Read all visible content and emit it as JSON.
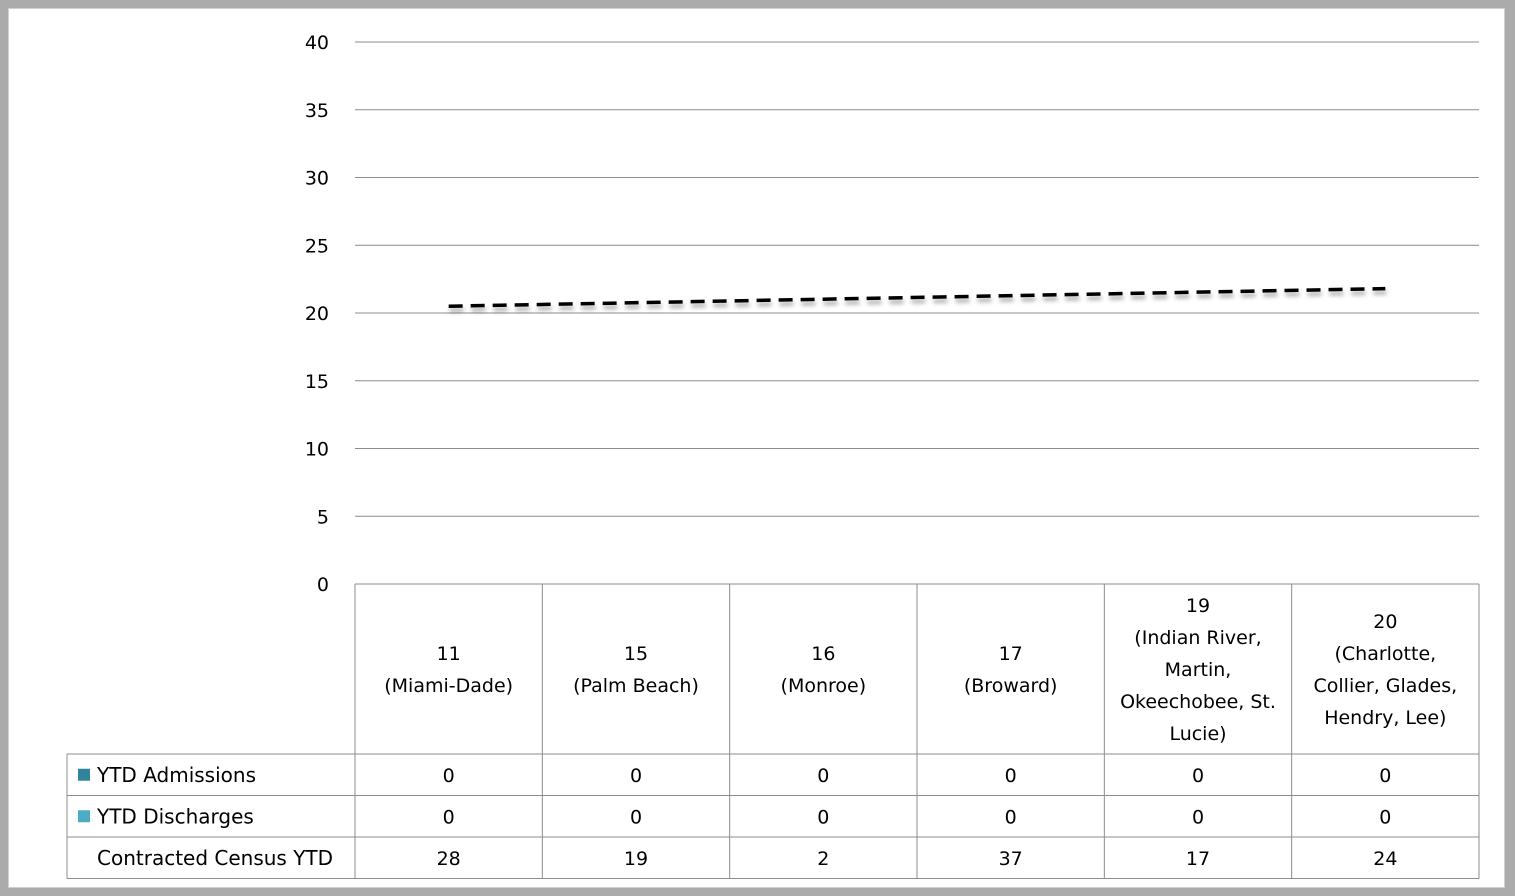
{
  "chart_data": {
    "type": "bar",
    "title": "",
    "xlabel": "",
    "ylabel": "",
    "ylim": [
      0,
      40
    ],
    "yticks": [
      0,
      5,
      10,
      15,
      20,
      25,
      30,
      35,
      40
    ],
    "grid": true,
    "categories": [
      [
        "11",
        "(Miami-Dade)"
      ],
      [
        "15",
        "(Palm Beach)"
      ],
      [
        "16",
        "(Monroe)"
      ],
      [
        "17",
        "(Broward)"
      ],
      [
        "19",
        "(Indian River,",
        "Martin,",
        "Okeechobee, St.",
        "Lucie)"
      ],
      [
        "20",
        "(Charlotte,",
        "Collier, Glades,",
        "Hendry, Lee)"
      ]
    ],
    "series": [
      {
        "name": "YTD Admissions",
        "color": "#31849b",
        "values": [
          0,
          0,
          0,
          0,
          0,
          0
        ]
      },
      {
        "name": "YTD Discharges",
        "color": "#4bacc6",
        "values": [
          0,
          0,
          0,
          0,
          0,
          0
        ]
      },
      {
        "name": "Contracted Census YTD",
        "color": "#ffffff",
        "values": [
          28,
          19,
          2,
          37,
          17,
          24
        ]
      }
    ],
    "trendline": {
      "style": "dashed",
      "color": "#000000",
      "from_value": 20.5,
      "to_value": 21.8
    }
  }
}
